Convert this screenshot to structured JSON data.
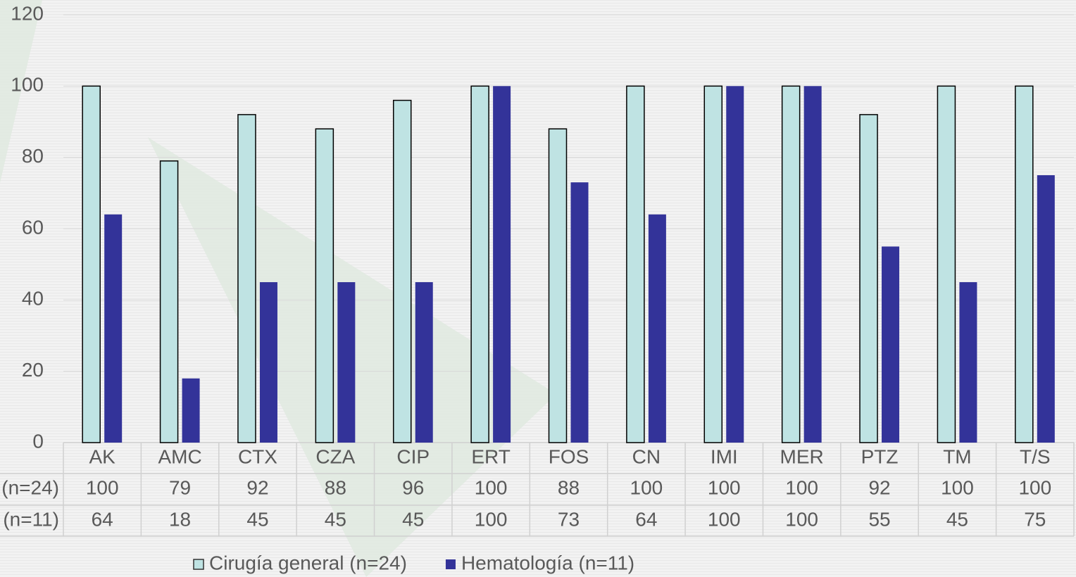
{
  "chart_data": {
    "type": "bar",
    "categories": [
      "AK",
      "AMC",
      "CTX",
      "CZA",
      "CIP",
      "ERT",
      "FOS",
      "CN",
      "IMI",
      "MER",
      "PTZ",
      "TM",
      "T/S"
    ],
    "series": [
      {
        "name": "Cirugía general (n=24)",
        "color": "#bfe3e3",
        "values": [
          100,
          79,
          92,
          88,
          96,
          100,
          88,
          100,
          100,
          100,
          92,
          100,
          100
        ]
      },
      {
        "name": "Hematología (n=11)",
        "color": "#333399",
        "values": [
          64,
          18,
          45,
          45,
          45,
          100,
          73,
          64,
          100,
          100,
          55,
          45,
          75
        ]
      }
    ],
    "ylim": [
      0,
      120
    ],
    "yticks": [
      0,
      20,
      40,
      60,
      80,
      100,
      120
    ],
    "grid": true,
    "data_table": true,
    "legend": "bottom"
  }
}
